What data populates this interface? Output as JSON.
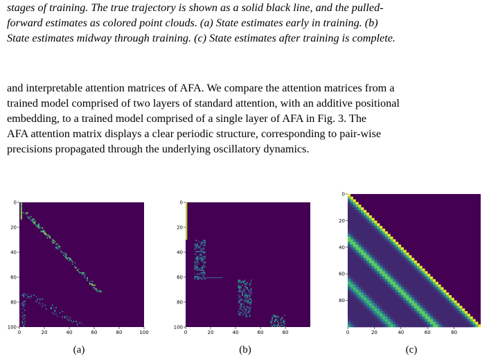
{
  "caption": {
    "lines": [
      "stages of training. The true trajectory is shown as a solid black line, and the pulled-",
      "forward estimates as colored point clouds. (a) State estimates early in training. (b)",
      "State estimates midway through training. (c) State estimates after training is complete."
    ]
  },
  "body": {
    "lines": [
      "and interpretable attention matrices of AFA. We compare the attention matrices from a",
      "trained model comprised of two layers of standard attention, with an additive positional",
      "embedding, to a trained model comprised of a single layer of AFA in Fig. 3.  The",
      "AFA attention matrix displays a clear periodic structure, corresponding to pair-wise",
      "precisions propagated through the underlying oscillatory dynamics."
    ]
  },
  "figures": [
    {
      "label": "(a)",
      "chart_data": {
        "type": "heatmap",
        "title": "",
        "xlabel": "",
        "ylabel": "",
        "x_ticks": [
          0,
          20,
          40,
          60,
          80,
          100
        ],
        "y_ticks": [
          0,
          20,
          40,
          60,
          80,
          100
        ],
        "xlim": [
          0,
          100
        ],
        "ylim": [
          100,
          0
        ],
        "colormap": "viridis",
        "background_color": "#440154",
        "description_of_pattern": "sparse diagonal band with lower off-diagonal band"
      }
    },
    {
      "label": "(b)",
      "chart_data": {
        "type": "heatmap",
        "title": "",
        "xlabel": "",
        "ylabel": "",
        "x_ticks": [
          0,
          20,
          40,
          60,
          80
        ],
        "y_ticks": [
          0,
          20,
          40,
          60,
          80,
          100
        ],
        "xlim": [
          0,
          100
        ],
        "ylim": [
          100,
          0
        ],
        "colormap": "viridis",
        "background_color": "#440154",
        "description_of_pattern": "block-structured attention"
      }
    },
    {
      "label": "(c)",
      "chart_data": {
        "type": "heatmap",
        "title": "",
        "xlabel": "",
        "ylabel": "",
        "x_ticks": [
          0,
          20,
          40,
          60,
          80
        ],
        "y_ticks": [
          0,
          20,
          40,
          60,
          80
        ],
        "xlim": [
          0,
          100
        ],
        "ylim": [
          100,
          0
        ],
        "colormap": "viridis",
        "background_color": "#440154",
        "description_of_pattern": "lower-triangular with periodic diagonal bands"
      }
    }
  ]
}
